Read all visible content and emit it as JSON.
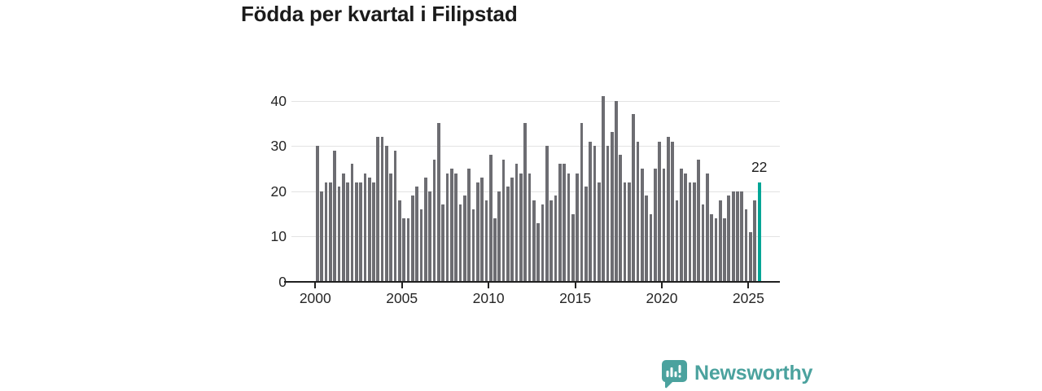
{
  "title": "Födda per kvartal i Filipstad",
  "branding": {
    "logo_text": "Newsworthy",
    "logo_icon": "speech-bubble-with-bar-chart-and-exclamation",
    "brand_color": "#4ba29e"
  },
  "colors": {
    "background": "#ffffff",
    "bar_gray": "#6d6d72",
    "highlight_teal": "#00a596",
    "gridline": "#e3e3e3",
    "axis": "#202020",
    "text": "#262626",
    "title_text": "#1b1b1b"
  },
  "chart_data": {
    "type": "bar",
    "title": "Födda per kvartal i Filipstad",
    "frequency": "quarterly",
    "x_start": "2000 Q1",
    "x_end": "2025 Q3",
    "x_tick_labels": [
      "2000",
      "2005",
      "2010",
      "2015",
      "2020",
      "2025"
    ],
    "y_tick_labels": [
      "0",
      "10",
      "20",
      "30",
      "40"
    ],
    "ylim": [
      0,
      44
    ],
    "grid": "horizontal",
    "legend": "none",
    "bar_color": "#6d6d72",
    "values": [
      30,
      20,
      22,
      22,
      29,
      21,
      24,
      22,
      26,
      22,
      22,
      24,
      23,
      22,
      32,
      32,
      30,
      24,
      29,
      18,
      14,
      14,
      19,
      21,
      16,
      23,
      20,
      27,
      35,
      17,
      24,
      25,
      24,
      17,
      19,
      25,
      16,
      22,
      23,
      18,
      28,
      14,
      20,
      27,
      21,
      23,
      26,
      24,
      35,
      24,
      18,
      13,
      17,
      30,
      18,
      19,
      26,
      26,
      24,
      15,
      24,
      35,
      21,
      31,
      30,
      22,
      41,
      30,
      33,
      40,
      28,
      22,
      22,
      37,
      31,
      25,
      19,
      15,
      25,
      31,
      25,
      32,
      31,
      18,
      25,
      24,
      22,
      22,
      27,
      17,
      24,
      15,
      14,
      18,
      14,
      19,
      20,
      20,
      20,
      16,
      11,
      18,
      22
    ],
    "highlight": {
      "index": 102,
      "period": "2025 Q3",
      "label": "22",
      "color": "#00a596"
    }
  }
}
